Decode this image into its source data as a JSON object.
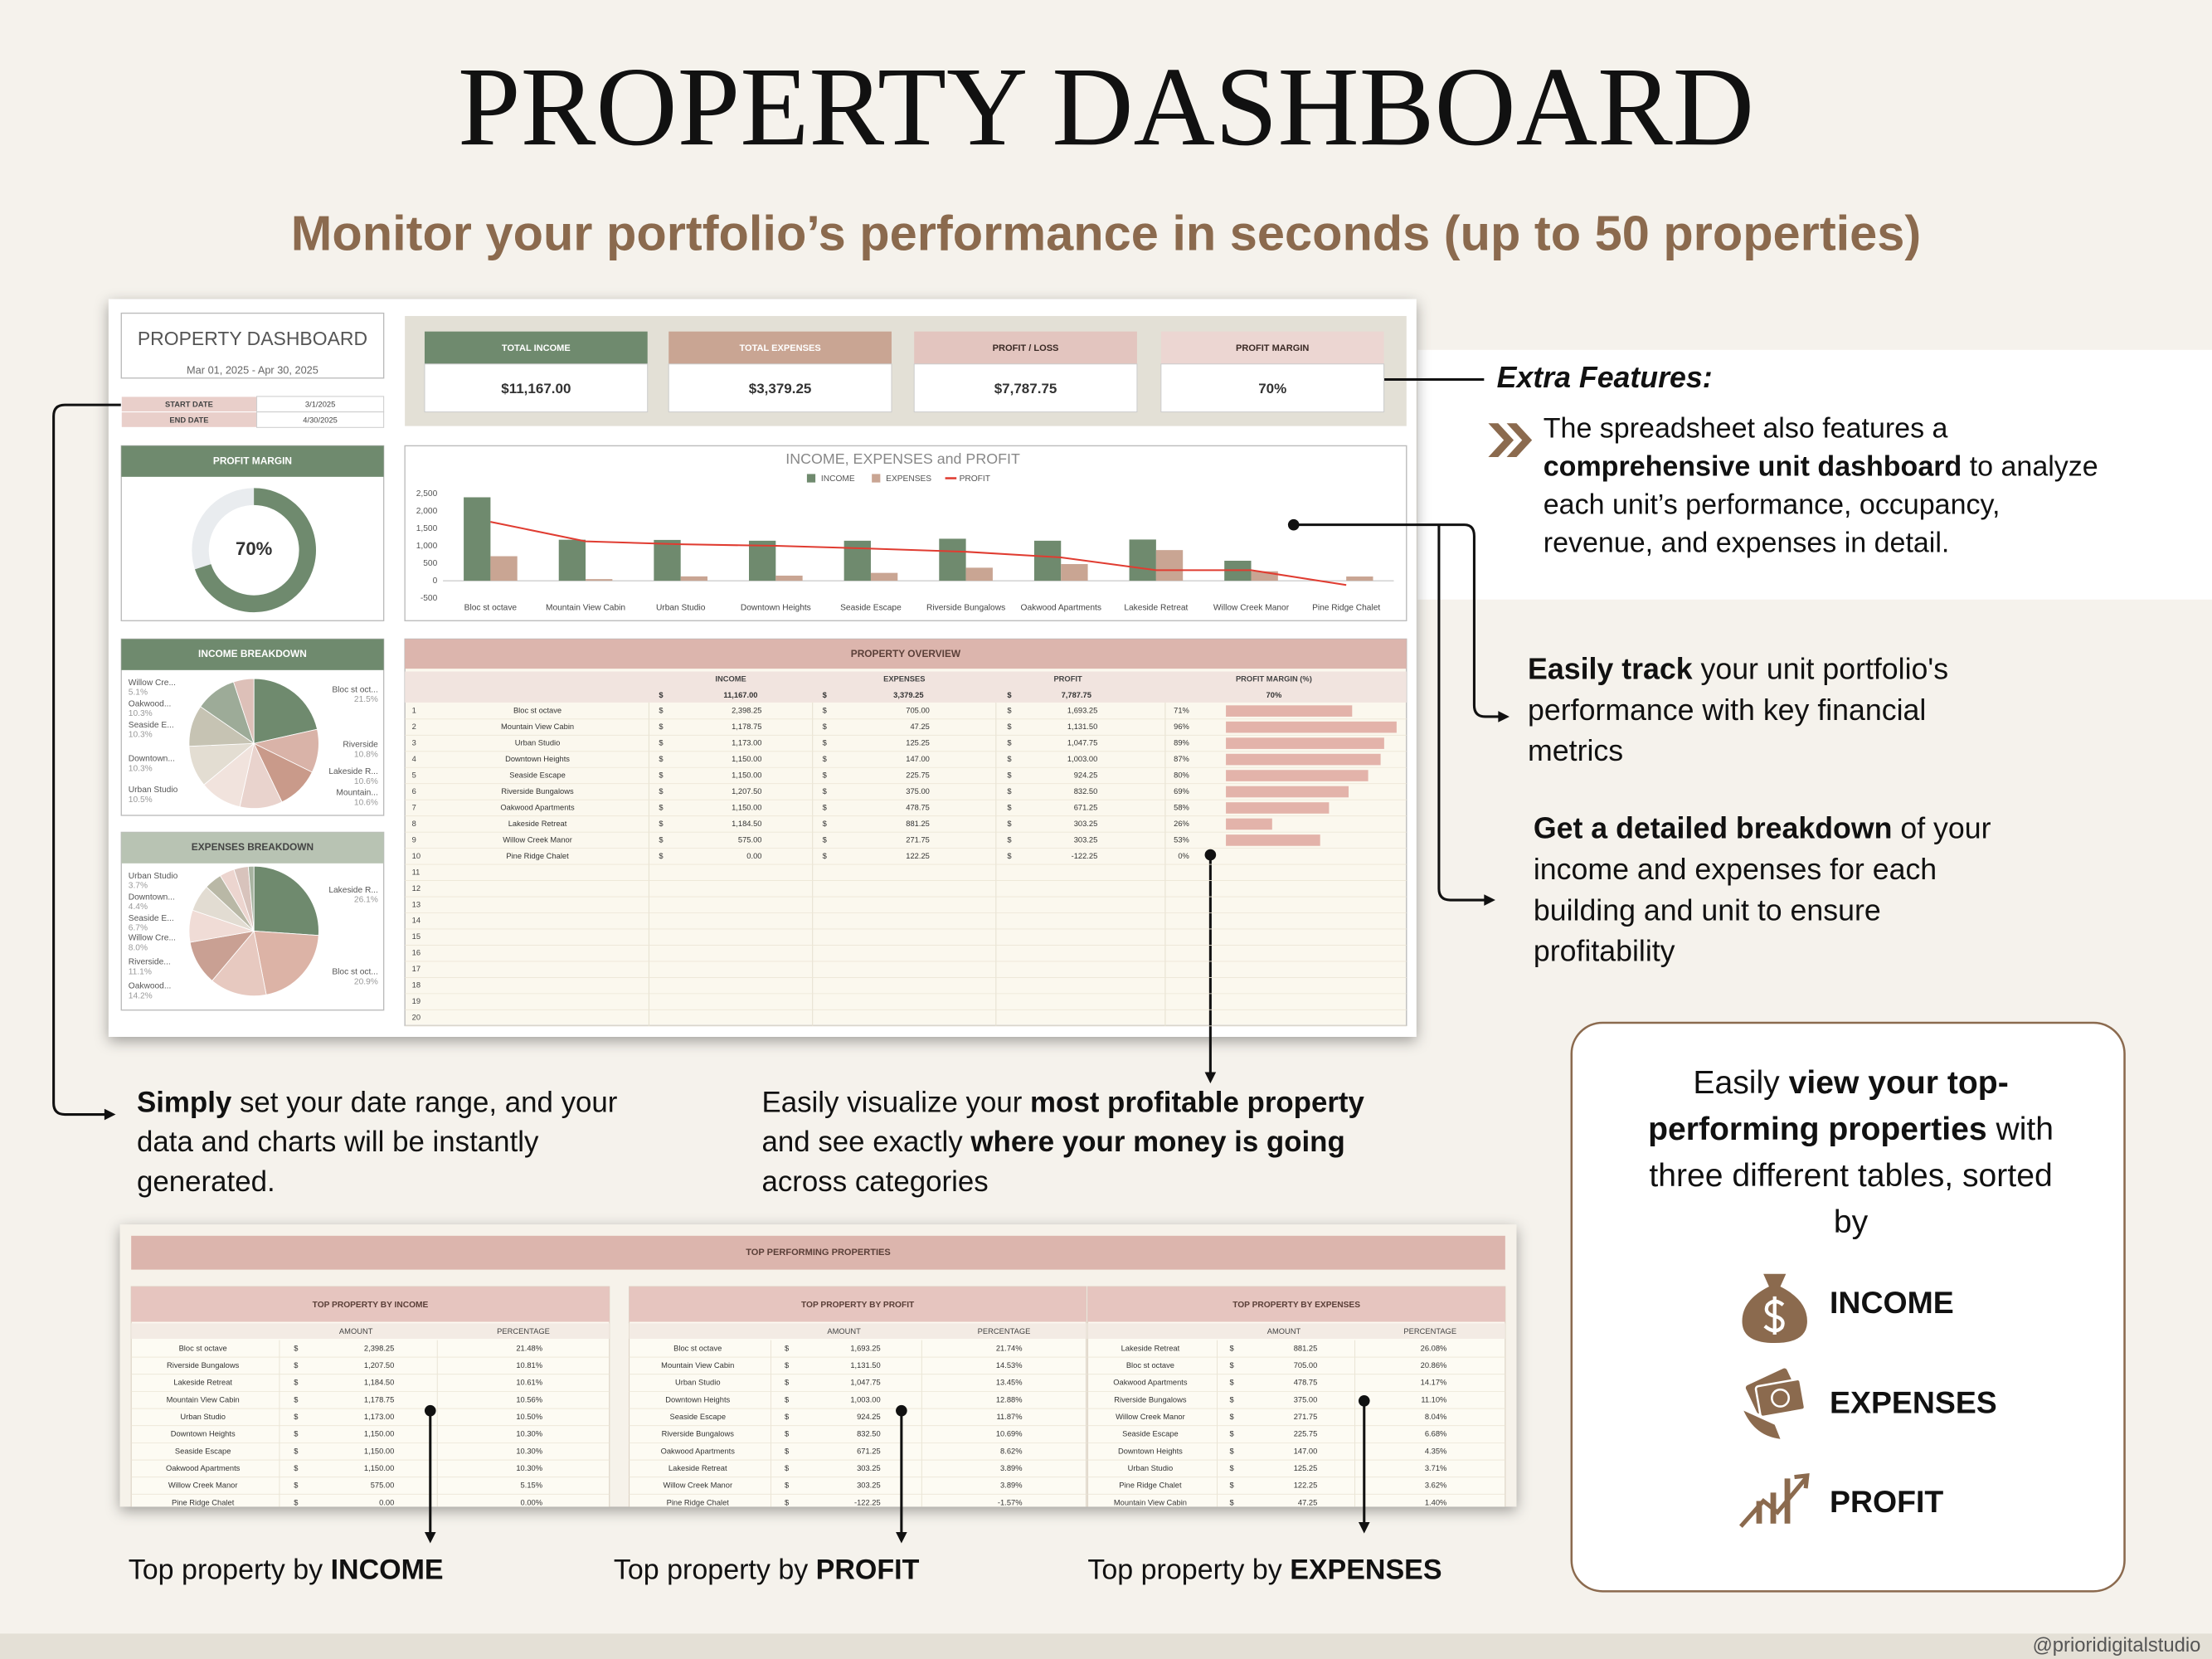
{
  "header": {
    "title": "PROPERTY DASHBOARD",
    "subtitle": "Monitor your portfolio’s performance in seconds (up to 50 properties)"
  },
  "dashboard": {
    "title": "PROPERTY DASHBOARD",
    "date_range": "Mar 01, 2025 - Apr 30, 2025",
    "dates": [
      [
        "START DATE",
        "3/1/2025"
      ],
      [
        "END DATE",
        "4/30/2025"
      ]
    ],
    "kpis": [
      {
        "label": "TOTAL INCOME",
        "value": "$11,167.00",
        "color": "#6f8a6e",
        "text_color": "#ffffff"
      },
      {
        "label": "TOTAL EXPENSES",
        "value": "$3,379.25",
        "color": "#c9a593",
        "text_color": "#ffffff"
      },
      {
        "label": "PROFIT / LOSS",
        "value": "$7,787.75",
        "color": "#e3c5bf",
        "text_color": "#3a2a25"
      },
      {
        "label": "PROFIT MARGIN",
        "value": "70%",
        "color": "#ecd6d2",
        "text_color": "#3a2a25"
      }
    ],
    "profit_margin": {
      "type": "gauge",
      "title": "PROFIT MARGIN",
      "value": 70,
      "value_label": "70%",
      "color": "#6f8a6e"
    },
    "income_chart": {
      "type": "bar",
      "title": "INCOME, EXPENSES and PROFIT",
      "categories": [
        "Bloc st octave",
        "Mountain View Cabin",
        "Urban Studio",
        "Downtown Heights",
        "Seaside Escape",
        "Riverside Bungalows",
        "Oakwood Apartments",
        "Lakeside Retreat",
        "Willow Creek Manor",
        "Pine Ridge Chalet"
      ],
      "series": [
        {
          "name": "INCOME",
          "color": "#6f8a6e",
          "values": [
            2398.25,
            1178.75,
            1173,
            1150,
            1150,
            1207.5,
            1150,
            1184.5,
            575,
            0
          ]
        },
        {
          "name": "EXPENSES",
          "color": "#c9a593",
          "values": [
            705,
            47.25,
            125.25,
            147,
            225.75,
            375,
            478.75,
            881.25,
            271.75,
            122.25
          ]
        },
        {
          "name": "PROFIT",
          "color": "#e03c31",
          "type": "line",
          "values": [
            1693.25,
            1131.5,
            1047.75,
            1003,
            924.25,
            832.5,
            671.25,
            303.25,
            303.25,
            -122.25
          ]
        }
      ],
      "ylim": [
        -500,
        2500
      ],
      "yticks": [
        -500,
        0,
        500,
        {
          "value": 1000,
          "label": "1,000"
        },
        {
          "value": 1500,
          "label": "1,500"
        },
        {
          "value": 2000,
          "label": "2,000"
        },
        {
          "value": 2500,
          "label": "2,500"
        }
      ],
      "grid": false
    },
    "income_breakdown": {
      "type": "pie",
      "title": "INCOME BREAKDOWN",
      "categories": [
        "Bloc st oct...",
        "Riverside",
        "Lakeside R...",
        "Mountain...",
        "Urban Studio",
        "Downtown...",
        "Seaside E...",
        "Oakwood...",
        "Willow Cre..."
      ],
      "values": [
        21.5,
        10.8,
        10.6,
        10.6,
        10.5,
        10.3,
        10.3,
        10.3,
        5.1
      ],
      "value_labels": [
        "21.5%",
        "10.8%",
        "10.6%",
        "10.6%",
        "10.5%",
        "10.3%",
        "10.3%",
        "10.3%",
        "5.1%"
      ],
      "colors": [
        "#6f8a6e",
        "#d9b3a8",
        "#c99a8a",
        "#e9d3cd",
        "#f1e3dd",
        "#e3ddd2",
        "#c6c3b3",
        "#9dab98",
        "#ddc0b8"
      ]
    },
    "expenses_breakdown": {
      "type": "pie",
      "title": "EXPENSES BREAKDOWN",
      "categories": [
        "Lakeside R...",
        "Bloc st oct...",
        "Oakwood...",
        "Riverside...",
        "Willow Cre...",
        "Seaside E...",
        "Downtown...",
        "Urban Studio",
        null,
        null
      ],
      "values": [
        26.1,
        20.9,
        14.2,
        11.1,
        8.0,
        6.7,
        4.4,
        3.7,
        3.6,
        1.4
      ],
      "value_labels": [
        "26.1%",
        "20.9%",
        "14.2%",
        "11.1%",
        "8.0%",
        "6.7%",
        "4.4%",
        "3.7%",
        null,
        null
      ],
      "colors": [
        "#6f8a6e",
        "#dcb3a6",
        "#e7c9c0",
        "#c9a093",
        "#f0dcd6",
        "#e2dcd2",
        "#b9b8a6",
        "#ecd5cf",
        "#d8c3bc",
        "#a7b3a0"
      ]
    },
    "overview": {
      "title": "PROPERTY OVERVIEW",
      "columns": [
        "INCOME",
        "EXPENSES",
        "PROFIT",
        "PROFIT MARGIN (%)"
      ],
      "currency": "$",
      "totals": [
        "11,167.00",
        "3,379.25",
        "7,787.75",
        "70%"
      ],
      "row_numbers": [
        1,
        2,
        3,
        4,
        5,
        6,
        7,
        8,
        9,
        10,
        11,
        12,
        13,
        14,
        15,
        16,
        17,
        18,
        19,
        20
      ],
      "rows": [
        [
          "Bloc st octave",
          "2,398.25",
          "705.00",
          "1,693.25"
        ],
        [
          "Mountain View Cabin",
          "1,178.75",
          "47.25",
          "1,131.50"
        ],
        [
          "Urban Studio",
          "1,173.00",
          "125.25",
          "1,047.75"
        ],
        [
          "Downtown Heights",
          "1,150.00",
          "147.00",
          "1,003.00"
        ],
        [
          "Seaside Escape",
          "1,150.00",
          "225.75",
          "924.25"
        ],
        [
          "Riverside Bungalows",
          "1,207.50",
          "375.00",
          "832.50"
        ],
        [
          "Oakwood Apartments",
          "1,150.00",
          "478.75",
          "671.25"
        ],
        [
          "Lakeside Retreat",
          "1,184.50",
          "881.25",
          "303.25"
        ],
        [
          "Willow Creek Manor",
          "575.00",
          "271.75",
          "303.25"
        ],
        [
          "Pine Ridge Chalet",
          "0.00",
          "122.25",
          "-122.25"
        ]
      ],
      "margins": [
        71,
        96,
        89,
        87,
        80,
        69,
        58,
        26,
        53,
        0
      ],
      "margin_labels": [
        "71%",
        "96%",
        "89%",
        "87%",
        "80%",
        "69%",
        "58%",
        "26%",
        "53%",
        "0%"
      ],
      "bar_color": "#e3b3aa"
    }
  },
  "top": {
    "title": "TOP PERFORMING PROPERTIES",
    "columns": [
      "AMOUNT",
      "PERCENTAGE"
    ],
    "currency": "$",
    "tables": [
      {
        "title": "TOP PROPERTY BY INCOME",
        "rows": [
          [
            "Bloc st octave",
            "2,398.25",
            "21.48%"
          ],
          [
            "Riverside Bungalows",
            "1,207.50",
            "10.81%"
          ],
          [
            "Lakeside Retreat",
            "1,184.50",
            "10.61%"
          ],
          [
            "Mountain View Cabin",
            "1,178.75",
            "10.56%"
          ],
          [
            "Urban Studio",
            "1,173.00",
            "10.50%"
          ],
          [
            "Downtown Heights",
            "1,150.00",
            "10.30%"
          ],
          [
            "Seaside Escape",
            "1,150.00",
            "10.30%"
          ],
          [
            "Oakwood Apartments",
            "1,150.00",
            "10.30%"
          ],
          [
            "Willow Creek Manor",
            "575.00",
            "5.15%"
          ],
          [
            "Pine Ridge Chalet",
            "0.00",
            "0.00%"
          ]
        ]
      },
      {
        "title": "TOP PROPERTY BY PROFIT",
        "rows": [
          [
            "Bloc st octave",
            "1,693.25",
            "21.74%"
          ],
          [
            "Mountain View Cabin",
            "1,131.50",
            "14.53%"
          ],
          [
            "Urban Studio",
            "1,047.75",
            "13.45%"
          ],
          [
            "Downtown Heights",
            "1,003.00",
            "12.88%"
          ],
          [
            "Seaside Escape",
            "924.25",
            "11.87%"
          ],
          [
            "Riverside Bungalows",
            "832.50",
            "10.69%"
          ],
          [
            "Oakwood Apartments",
            "671.25",
            "8.62%"
          ],
          [
            "Lakeside Retreat",
            "303.25",
            "3.89%"
          ],
          [
            "Willow Creek Manor",
            "303.25",
            "3.89%"
          ],
          [
            "Pine Ridge Chalet",
            "-122.25",
            "-1.57%"
          ]
        ]
      },
      {
        "title": "TOP PROPERTY BY EXPENSES",
        "rows": [
          [
            "Lakeside Retreat",
            "881.25",
            "26.08%"
          ],
          [
            "Bloc st octave",
            "705.00",
            "20.86%"
          ],
          [
            "Oakwood Apartments",
            "478.75",
            "14.17%"
          ],
          [
            "Riverside Bungalows",
            "375.00",
            "11.10%"
          ],
          [
            "Willow Creek Manor",
            "271.75",
            "8.04%"
          ],
          [
            "Seaside Escape",
            "225.75",
            "6.68%"
          ],
          [
            "Downtown Heights",
            "147.00",
            "4.35%"
          ],
          [
            "Urban Studio",
            "125.25",
            "3.71%"
          ],
          [
            "Pine Ridge Chalet",
            "122.25",
            "3.62%"
          ],
          [
            "Mountain View Cabin",
            "47.25",
            "1.40%"
          ]
        ]
      }
    ]
  },
  "callouts": {
    "extra_title": "Extra Features:",
    "extra": [
      [
        {
          "t": "The spreadsheet also features a"
        }
      ],
      [
        {
          "t": "comprehensive unit dashboard",
          "b": true
        },
        {
          "t": " to analyze"
        }
      ],
      [
        {
          "t": "each unit’s performance, occupancy,"
        }
      ],
      [
        {
          "t": "revenue, and expenses in detail."
        }
      ]
    ],
    "track": [
      [
        {
          "t": "Easily track",
          "b": true
        },
        {
          "t": " your unit portfolio's"
        }
      ],
      [
        {
          "t": "performance with key financial"
        }
      ],
      [
        {
          "t": "metrics"
        }
      ]
    ],
    "breakdown": [
      [
        {
          "t": "Get a detailed breakdown",
          "b": true
        },
        {
          "t": " of your"
        }
      ],
      [
        {
          "t": "income and expenses for each"
        }
      ],
      [
        {
          "t": "building and unit to ensure"
        }
      ],
      [
        {
          "t": "profitability"
        }
      ]
    ],
    "simply": [
      [
        {
          "t": "Simply",
          "b": true
        },
        {
          "t": " set your date range, and your"
        }
      ],
      [
        {
          "t": "data and charts will be instantly"
        }
      ],
      [
        {
          "t": "generated."
        }
      ]
    ],
    "visualize": [
      [
        {
          "t": "Easily visualize your "
        },
        {
          "t": "most profitable property",
          "b": true
        }
      ],
      [
        {
          "t": "and see exactly "
        },
        {
          "t": "where your money is going",
          "b": true
        }
      ],
      [
        {
          "t": "across categories"
        }
      ]
    ],
    "bottom": [
      [
        {
          "t": "Top property by "
        },
        {
          "t": "INCOME",
          "b": true
        }
      ],
      [
        {
          "t": "Top property by "
        },
        {
          "t": "PROFIT",
          "b": true
        }
      ],
      [
        {
          "t": "Top property by "
        },
        {
          "t": "EXPENSES",
          "b": true
        }
      ]
    ]
  },
  "features_box": {
    "lines": [
      [
        {
          "t": "Easily "
        },
        {
          "t": "view your top-",
          "b": true
        }
      ],
      [
        {
          "t": "performing properties",
          "b": true
        },
        {
          "t": " with"
        }
      ],
      [
        {
          "t": "three different tables, sorted"
        }
      ],
      [
        {
          "t": "by"
        }
      ]
    ],
    "items": [
      "INCOME",
      "EXPENSES",
      "PROFIT"
    ]
  },
  "footer": "@prioridigitalstudio"
}
